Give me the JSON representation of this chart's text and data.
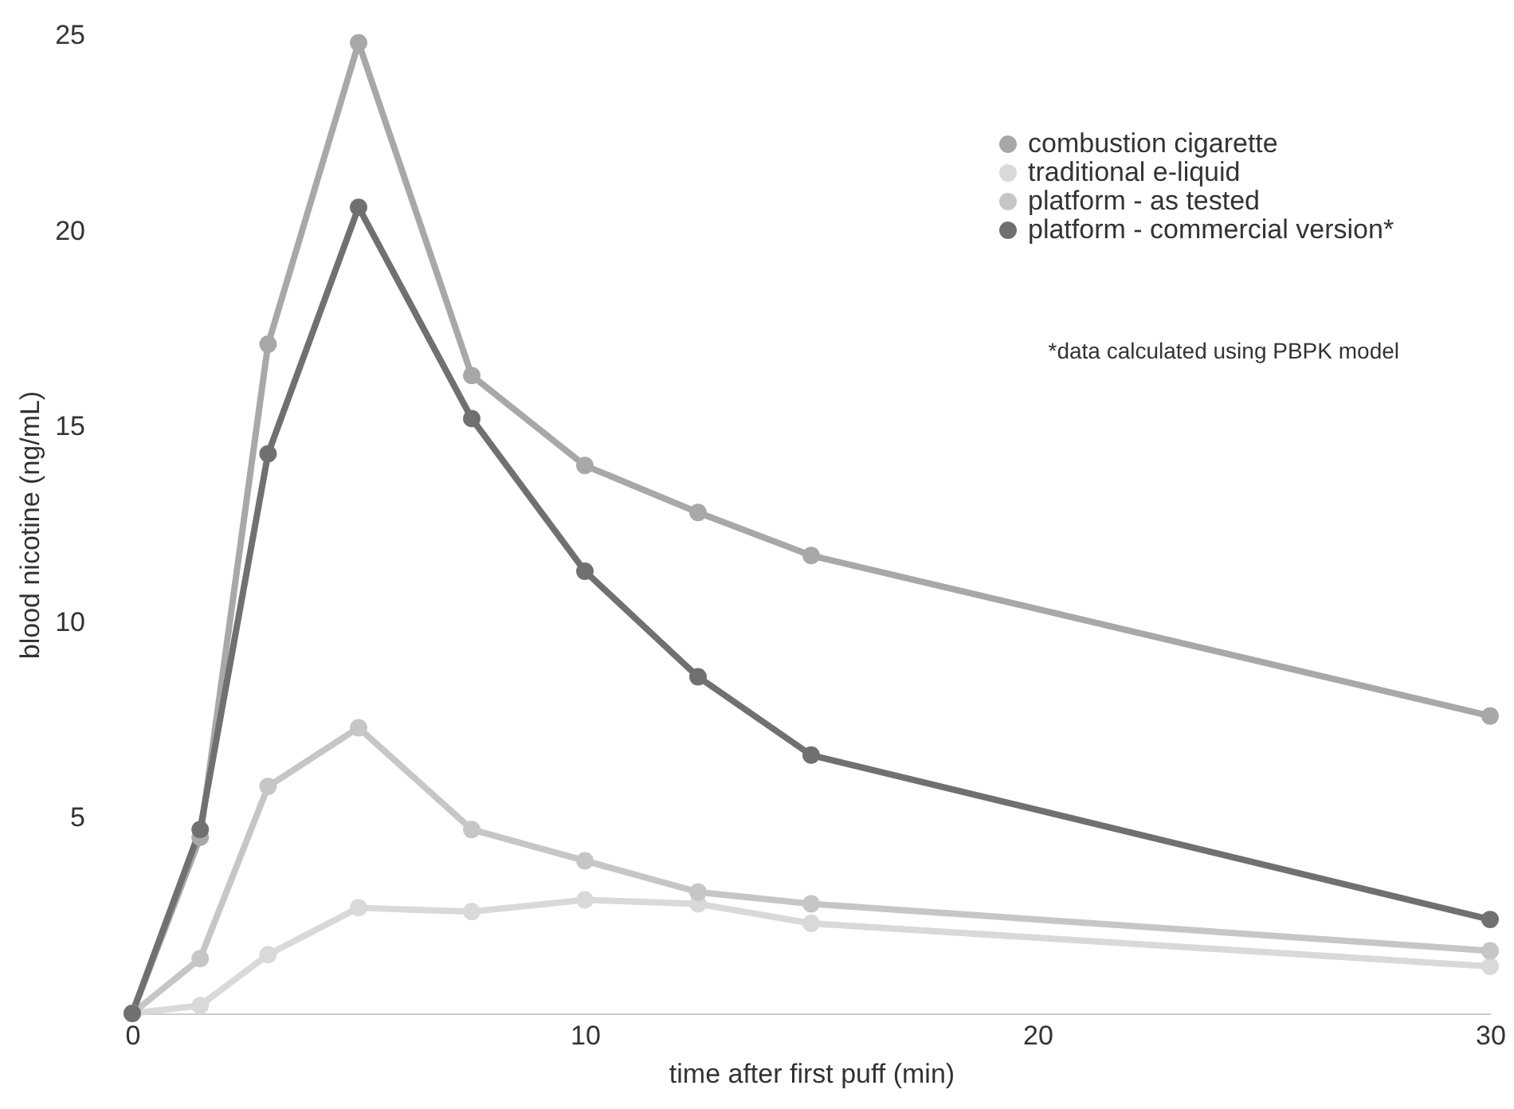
{
  "chart_data": {
    "type": "line",
    "xlabel": "time after first puff (min)",
    "ylabel": "blood nicotine (ng/mL)",
    "x": [
      0,
      1.5,
      3,
      5,
      7.5,
      10,
      12.5,
      15,
      30
    ],
    "series": [
      {
        "name": "combustion cigarette",
        "color": "#a8a8a8",
        "values": [
          0,
          4.5,
          17.1,
          24.8,
          16.3,
          14.0,
          12.8,
          11.7,
          7.6
        ]
      },
      {
        "name": "traditional e-liquid",
        "color": "#d9d9d9",
        "values": [
          0,
          0.2,
          1.5,
          2.7,
          2.6,
          2.9,
          2.8,
          2.3,
          1.2
        ]
      },
      {
        "name": "platform - as tested",
        "color": "#c6c6c6",
        "values": [
          0,
          1.4,
          5.8,
          7.3,
          4.7,
          3.9,
          3.1,
          2.8,
          1.6
        ]
      },
      {
        "name": "platform - commercial version*",
        "color": "#707070",
        "values": [
          0,
          4.7,
          14.3,
          20.6,
          15.2,
          11.3,
          8.6,
          6.6,
          2.4
        ]
      }
    ],
    "xlim": [
      0,
      30
    ],
    "xticks": [
      0,
      10,
      20,
      30
    ],
    "ylim": [
      0,
      25
    ],
    "yticks": [
      5,
      10,
      15,
      20,
      25
    ],
    "annotations": [
      "*data calculated using PBPK model"
    ],
    "legend": "top right",
    "marker": "circle",
    "line_style": "solid",
    "grid": false
  }
}
